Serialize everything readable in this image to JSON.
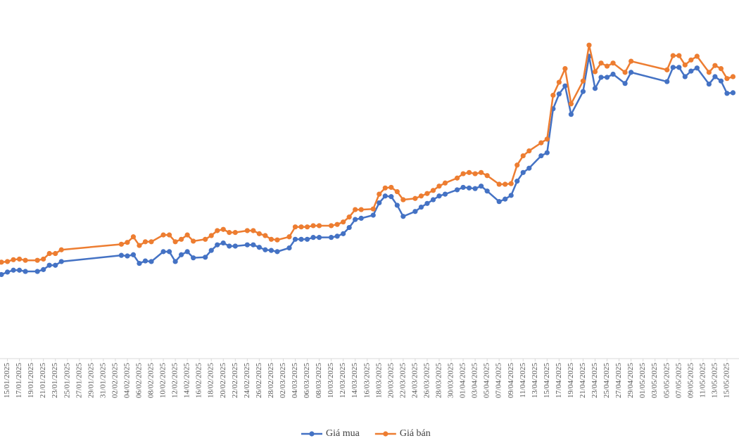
{
  "chart_data": {
    "type": "line",
    "x": [
      "14/01/2025",
      "15/01/2025",
      "16/01/2025",
      "17/01/2025",
      "18/01/2025",
      "20/01/2025",
      "21/01/2025",
      "22/01/2025",
      "23/01/2025",
      "24/01/2025",
      "03/02/2025",
      "04/02/2025",
      "05/02/2025",
      "06/02/2025",
      "07/02/2025",
      "08/02/2025",
      "10/02/2025",
      "11/02/2025",
      "12/02/2025",
      "13/02/2025",
      "14/02/2025",
      "15/02/2025",
      "17/02/2025",
      "18/02/2025",
      "19/02/2025",
      "20/02/2025",
      "21/02/2025",
      "22/02/2025",
      "24/02/2025",
      "25/02/2025",
      "26/02/2025",
      "27/02/2025",
      "28/02/2025",
      "01/03/2025",
      "03/03/2025",
      "04/03/2025",
      "05/03/2025",
      "06/03/2025",
      "07/03/2025",
      "08/03/2025",
      "10/03/2025",
      "11/03/2025",
      "12/03/2025",
      "13/03/2025",
      "14/03/2025",
      "15/03/2025",
      "17/03/2025",
      "18/03/2025",
      "19/03/2025",
      "20/03/2025",
      "21/03/2025",
      "22/03/2025",
      "24/03/2025",
      "25/03/2025",
      "26/03/2025",
      "27/03/2025",
      "28/03/2025",
      "29/03/2025",
      "31/03/2025",
      "01/04/2025",
      "02/04/2025",
      "03/04/2025",
      "04/04/2025",
      "05/04/2025",
      "07/04/2025",
      "08/04/2025",
      "09/04/2025",
      "10/04/2025",
      "11/04/2025",
      "12/04/2025",
      "14/04/2025",
      "15/04/2025",
      "16/04/2025",
      "17/04/2025",
      "18/04/2025",
      "19/04/2025",
      "21/04/2025",
      "22/04/2025",
      "23/04/2025",
      "24/04/2025",
      "25/04/2025",
      "26/04/2025",
      "28/04/2025",
      "29/04/2025",
      "05/05/2025",
      "06/05/2025",
      "07/05/2025",
      "08/05/2025",
      "09/05/2025",
      "10/05/2025",
      "12/05/2025",
      "13/05/2025",
      "14/05/2025",
      "15/05/2025",
      "16/05/2025"
    ],
    "series": [
      {
        "name": "Giá mua",
        "color": "#4472c4",
        "values": [
          83.6,
          84.0,
          84.3,
          84.3,
          84.1,
          84.1,
          84.4,
          85.1,
          85.1,
          85.7,
          86.7,
          86.6,
          86.8,
          85.4,
          85.8,
          85.7,
          87.3,
          87.3,
          85.7,
          86.8,
          87.3,
          86.3,
          86.4,
          87.5,
          88.4,
          88.7,
          88.2,
          88.2,
          88.4,
          88.4,
          88.0,
          87.6,
          87.5,
          87.3,
          87.9,
          89.3,
          89.3,
          89.3,
          89.6,
          89.6,
          89.6,
          89.8,
          90.2,
          91.2,
          92.5,
          92.7,
          93.2,
          95.2,
          96.3,
          96.2,
          94.8,
          93.0,
          93.8,
          94.5,
          95.1,
          95.7,
          96.3,
          96.6,
          97.3,
          97.7,
          97.6,
          97.5,
          97.9,
          97.1,
          95.4,
          95.8,
          96.4,
          98.7,
          100.1,
          100.8,
          102.8,
          103.3,
          110.4,
          112.8,
          114.1,
          109.5,
          113.2,
          118.9,
          113.7,
          115.5,
          115.5,
          116.0,
          114.5,
          116.3,
          114.8,
          117.1,
          117.1,
          115.6,
          116.5,
          117.0,
          114.4,
          115.6,
          114.9,
          112.9,
          113.0
        ]
      },
      {
        "name": "Giá bán",
        "color": "#ed7d31",
        "values": [
          85.6,
          85.7,
          86.0,
          86.1,
          85.9,
          85.9,
          86.1,
          87.0,
          87.0,
          87.6,
          88.5,
          88.8,
          89.7,
          88.3,
          88.9,
          88.9,
          90.0,
          90.0,
          88.9,
          89.3,
          90.0,
          89.0,
          89.3,
          89.9,
          90.7,
          90.9,
          90.4,
          90.4,
          90.7,
          90.7,
          90.2,
          89.9,
          89.3,
          89.2,
          89.7,
          91.3,
          91.3,
          91.3,
          91.5,
          91.5,
          91.5,
          91.7,
          92.1,
          92.9,
          94.1,
          94.1,
          94.2,
          96.6,
          97.6,
          97.7,
          97.0,
          95.7,
          95.9,
          96.3,
          96.7,
          97.2,
          97.9,
          98.4,
          99.2,
          99.9,
          100.1,
          99.9,
          100.1,
          99.6,
          98.2,
          98.2,
          98.3,
          101.3,
          102.8,
          103.6,
          104.9,
          105.5,
          112.6,
          114.7,
          116.9,
          111.2,
          114.9,
          120.7,
          116.4,
          117.8,
          117.3,
          117.8,
          116.3,
          118.1,
          116.7,
          119.0,
          119.0,
          117.5,
          118.3,
          118.9,
          116.3,
          117.4,
          116.9,
          115.3,
          115.6
        ]
      }
    ],
    "xlim": [
      "14/01/2025",
      "17/05/2025"
    ],
    "xticks": [
      "15/01/2025",
      "17/01/2025",
      "19/01/2025",
      "21/01/2025",
      "23/01/2025",
      "25/01/2025",
      "27/01/2025",
      "29/01/2025",
      "31/01/2025",
      "02/02/2025",
      "04/02/2025",
      "06/02/2025",
      "08/02/2025",
      "10/02/2025",
      "12/02/2025",
      "14/02/2025",
      "16/02/2025",
      "18/02/2025",
      "20/02/2025",
      "22/02/2025",
      "24/02/2025",
      "26/02/2025",
      "28/02/2025",
      "02/03/2025",
      "04/03/2025",
      "06/03/2025",
      "08/03/2025",
      "10/03/2025",
      "12/03/2025",
      "14/03/2025",
      "16/03/2025",
      "18/03/2025",
      "20/03/2025",
      "22/03/2025",
      "24/03/2025",
      "26/03/2025",
      "28/03/2025",
      "30/03/2025",
      "01/04/2025",
      "03/04/2025",
      "05/04/2025",
      "07/04/2025",
      "09/04/2025",
      "11/04/2025",
      "13/04/2025",
      "15/04/2025",
      "17/04/2025",
      "19/04/2025",
      "21/04/2025",
      "23/04/2025",
      "25/04/2025",
      "27/04/2025",
      "29/04/2025",
      "01/05/2025",
      "03/05/2025",
      "05/05/2025",
      "07/05/2025",
      "09/05/2025",
      "11/05/2025",
      "13/05/2025",
      "15/05/2025"
    ],
    "ylim": [
      70,
      128
    ],
    "legend": "bottom"
  }
}
